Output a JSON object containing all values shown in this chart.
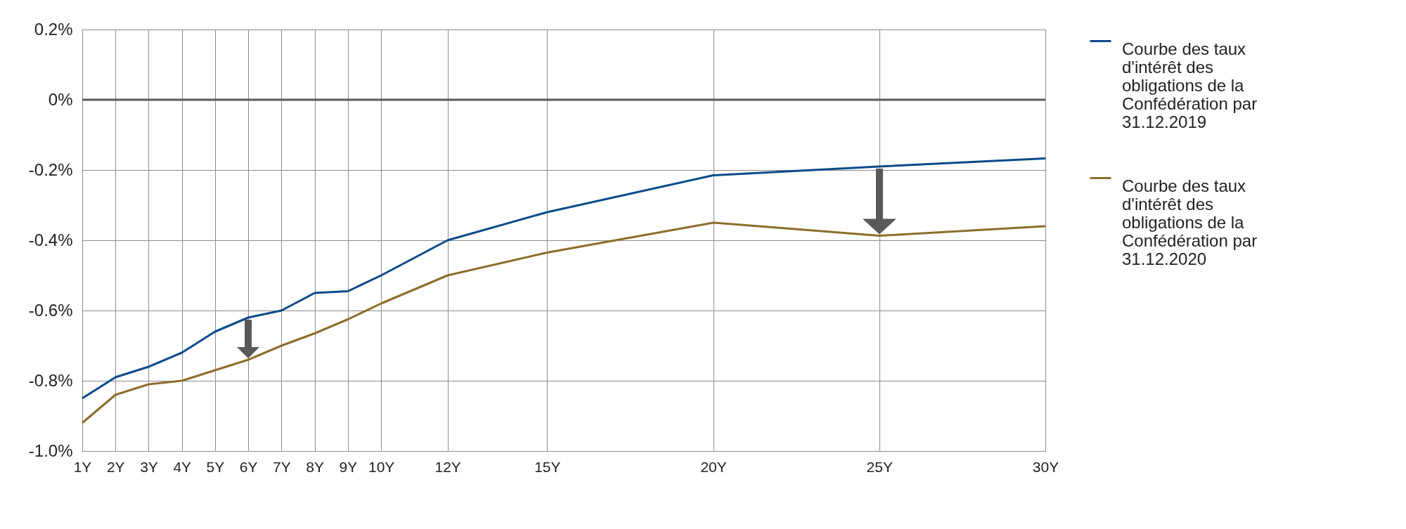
{
  "chart_data": {
    "type": "line",
    "x": [
      1,
      2,
      3,
      4,
      5,
      6,
      7,
      8,
      9,
      10,
      12,
      15,
      20,
      25,
      30
    ],
    "series": [
      {
        "name": "Courbe des taux d'intérêt des obligations de la Confédération par 31.12.2019",
        "color": "#0b4a8b",
        "values": [
          -0.85,
          -0.79,
          -0.76,
          -0.72,
          -0.66,
          -0.62,
          -0.6,
          -0.55,
          -0.545,
          -0.5,
          -0.4,
          -0.32,
          -0.215,
          -0.19,
          -0.167
        ]
      },
      {
        "name": "Courbe des taux d'intérêt des obligations de la Confédération par 31.12.2020",
        "color": "#8c6d2c",
        "values": [
          -0.92,
          -0.84,
          -0.81,
          -0.8,
          -0.77,
          -0.74,
          -0.7,
          -0.665,
          -0.625,
          -0.58,
          -0.5,
          -0.435,
          -0.35,
          -0.387,
          -0.36
        ]
      }
    ],
    "xlim": [
      1,
      30
    ],
    "xticks": [
      {
        "value": 1,
        "label": "1Y"
      },
      {
        "value": 2,
        "label": "2Y"
      },
      {
        "value": 3,
        "label": "3Y"
      },
      {
        "value": 4,
        "label": "4Y"
      },
      {
        "value": 5,
        "label": "5Y"
      },
      {
        "value": 6,
        "label": "6Y"
      },
      {
        "value": 7,
        "label": "7Y"
      },
      {
        "value": 8,
        "label": "8Y"
      },
      {
        "value": 9,
        "label": "9Y"
      },
      {
        "value": 10,
        "label": "10Y"
      },
      {
        "value": 12,
        "label": "12Y"
      },
      {
        "value": 15,
        "label": "15Y"
      },
      {
        "value": 20,
        "label": "20Y"
      },
      {
        "value": 25,
        "label": "25Y"
      },
      {
        "value": 30,
        "label": "30Y"
      }
    ],
    "ylim": [
      -1.0,
      0.2
    ],
    "yticks": [
      {
        "value": 0.2,
        "label": "0.2%"
      },
      {
        "value": 0,
        "label": "0%"
      },
      {
        "value": -0.2,
        "label": "-0.2%"
      },
      {
        "value": -0.4,
        "label": "-0.4%"
      },
      {
        "value": -0.6,
        "label": "-0.6%"
      },
      {
        "value": -0.8,
        "label": "-0.8%"
      },
      {
        "value": -1.0,
        "label": "-1.0%"
      }
    ],
    "ref_lines": [
      {
        "axis": "y",
        "value": 0,
        "color": "#595959"
      }
    ],
    "grid": true,
    "legend": "top right",
    "marker": "none",
    "line_style": "solid"
  }
}
